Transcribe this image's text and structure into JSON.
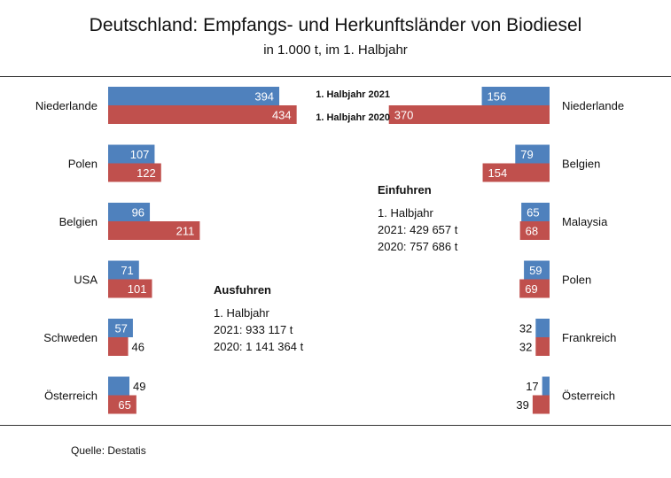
{
  "title": "Deutschland: Empfangs- und Herkunftsländer von Biodiesel",
  "subtitle": "in 1.000 t, im 1. Halbjahr",
  "source": "Quelle:  Destatis",
  "colors": {
    "h2021": "#4f81bd",
    "h2020": "#c0504d"
  },
  "exports_note": {
    "heading": "Ausfuhren",
    "line1": "1. Halbjahr",
    "line2": "2021: 933 117 t",
    "line3": "2020: 1 141 364 t"
  },
  "imports_note": {
    "heading": "Einfuhren",
    "line1": "1. Halbjahr",
    "line2": "2021: 429 657 t",
    "line3": "2020: 757 686 t"
  },
  "chart_data": [
    {
      "type": "bar",
      "title": "",
      "categories": [
        "Niederlande",
        "Polen",
        "Belgien",
        "USA",
        "Schweden",
        "Österreich"
      ],
      "series": [
        {
          "name": "1. Halbjahr 2021",
          "values": [
            394,
            107,
            96,
            71,
            57,
            49
          ]
        },
        {
          "name": "1. Halbjahr 2020",
          "values": [
            434,
            122,
            211,
            101,
            46,
            65
          ]
        }
      ]
    },
    {
      "type": "bar",
      "title": "",
      "categories": [
        "Niederlande",
        "Belgien",
        "Malaysia",
        "Polen",
        "Frankreich",
        "Österreich"
      ],
      "series": [
        {
          "name": "1. Halbjahr 2021",
          "values": [
            156,
            79,
            65,
            59,
            32,
            17
          ]
        },
        {
          "name": "1. Halbjahr 2020",
          "values": [
            370,
            154,
            68,
            69,
            32,
            39
          ]
        }
      ]
    }
  ]
}
